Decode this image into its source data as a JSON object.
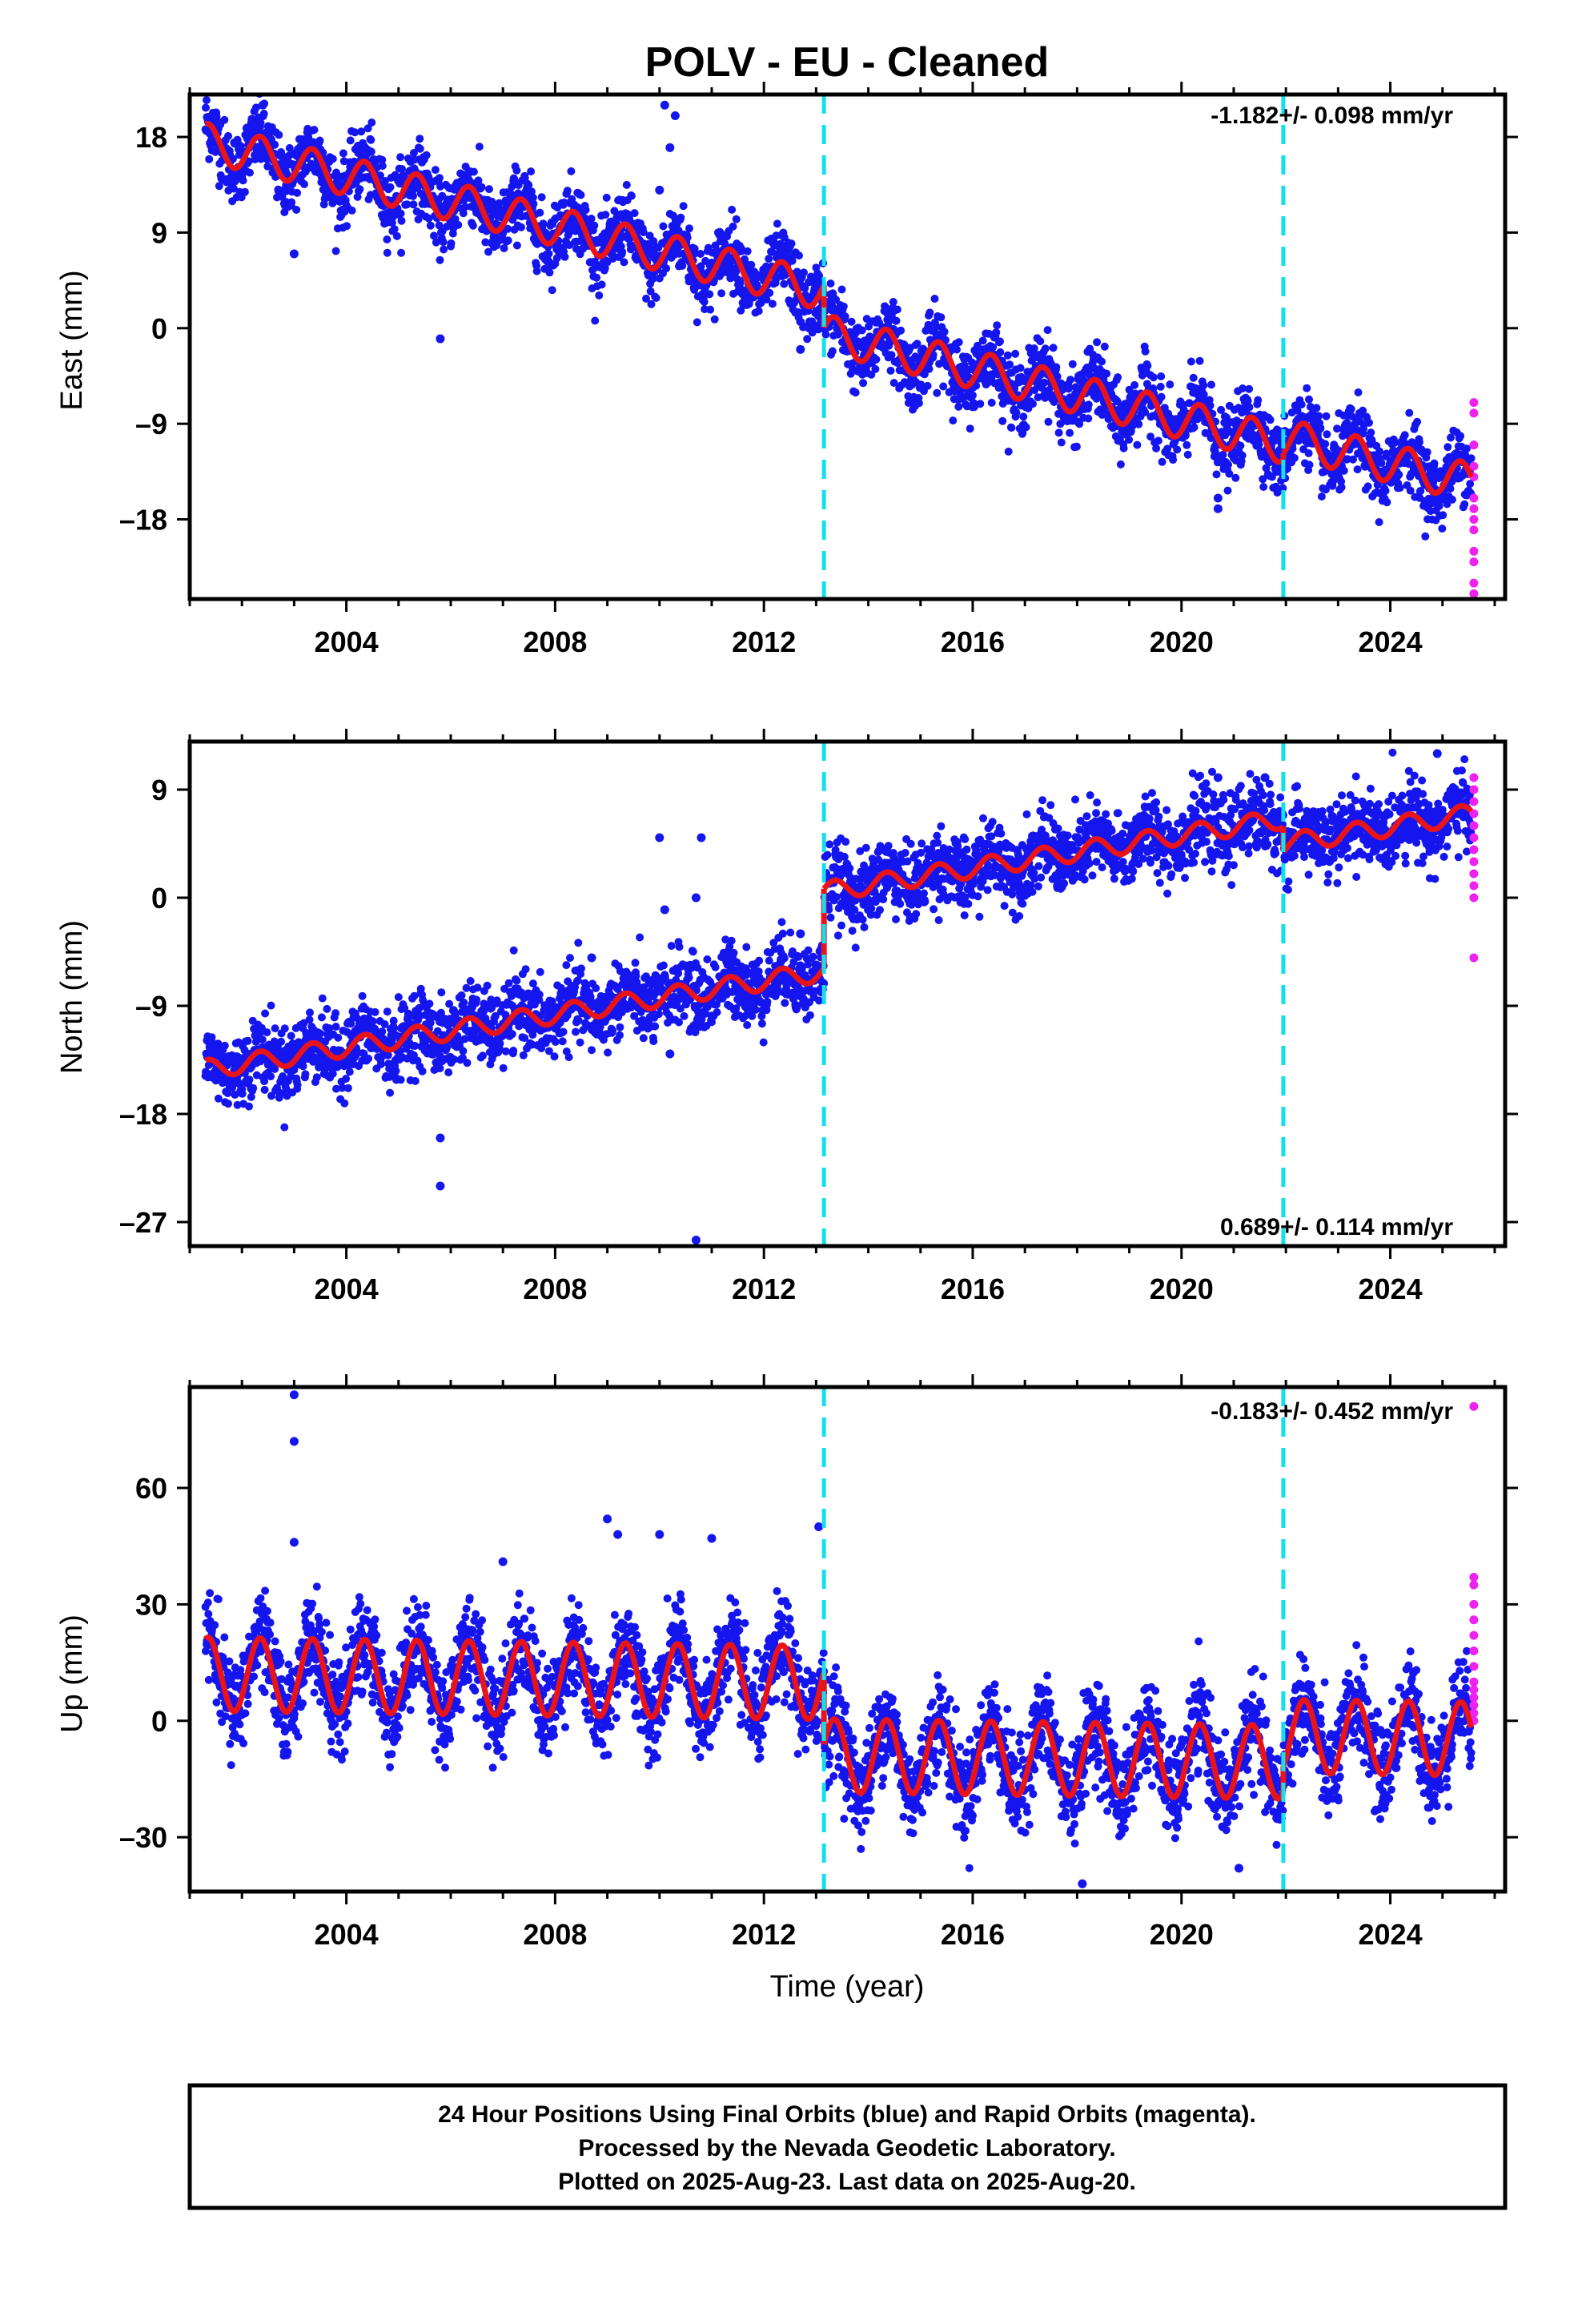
{
  "title": "POLV  - EU - Cleaned",
  "xlabel": "Time (year)",
  "colors": {
    "final": "#1515ee",
    "rapid": "#ee22ee",
    "model": "#e8141a",
    "breaks": "#11e0ee"
  },
  "footer": {
    "line1": "24 Hour Positions Using Final Orbits (blue) and Rapid Orbits (magenta).",
    "line2": "Processed by the Nevada Geodetic Laboratory.",
    "line3": "Plotted on 2025-Aug-23. Last data on 2025-Aug-20."
  },
  "chart_data": [
    {
      "type": "scatter",
      "component": "East",
      "ylabel": "East (mm)",
      "rate_label": "-1.182+/- 0.098 mm/yr",
      "rate_position": "top-right",
      "xlim": [
        2001.0,
        2026.2
      ],
      "ylim": [
        -25.5,
        22
      ],
      "xticks": [
        2004,
        2008,
        2012,
        2016,
        2020,
        2024
      ],
      "yticks": [
        18,
        9,
        0,
        -9,
        -18
      ],
      "ytick_labels": [
        "18",
        "9",
        "0",
        "–9",
        "–18"
      ],
      "breaks": [
        2013.15,
        2021.95
      ],
      "series": [
        {
          "role": "final",
          "x_range": [
            2001.3,
            2025.55
          ],
          "noise_mm": 1.6,
          "outliers": [
            [
              2002.4,
              21.0
            ],
            [
              2003.0,
              7.0
            ],
            [
              2005.8,
              -1.0
            ],
            [
              2010.0,
              13.0
            ],
            [
              2010.1,
              21.0
            ],
            [
              2010.3,
              20.0
            ],
            [
              2010.2,
              17.0
            ],
            [
              2012.7,
              -2.0
            ],
            [
              2020.7,
              -16.0
            ],
            [
              2020.7,
              -17.0
            ]
          ]
        },
        {
          "role": "rapid",
          "x": [
            2025.6,
            2025.6,
            2025.6,
            2025.6,
            2025.6,
            2025.6,
            2025.6,
            2025.6,
            2025.6,
            2025.6,
            2025.6,
            2025.6,
            2025.6
          ],
          "y": [
            -7,
            -8,
            -11,
            -13,
            -14,
            -16,
            -17,
            -18,
            -19,
            -21,
            -22,
            -24,
            -25
          ]
        },
        {
          "role": "model",
          "rate_mm_yr": -1.182,
          "amplitude_mm": 1.8,
          "segments": [
            {
              "x": [
                2001.3,
                2013.15
              ],
              "y0": 17.5,
              "x0": 2001.3
            },
            {
              "x": [
                2013.15,
                2021.95
              ],
              "y0": -0.5,
              "x0": 2013.15
            },
            {
              "x": [
                2021.95,
                2025.55
              ],
              "y0": -10.3,
              "x0": 2021.95
            }
          ]
        }
      ]
    },
    {
      "type": "scatter",
      "component": "North",
      "ylabel": "North (mm)",
      "rate_label": "0.689+/- 0.114 mm/yr",
      "rate_position": "bottom-right",
      "xlim": [
        2001.0,
        2026.2
      ],
      "ylim": [
        -29,
        13
      ],
      "xticks": [
        2004,
        2008,
        2012,
        2016,
        2020,
        2024
      ],
      "yticks": [
        9,
        0,
        -9,
        -18,
        -27
      ],
      "ytick_labels": [
        "9",
        "0",
        "–9",
        "–18",
        "–27"
      ],
      "breaks": [
        2013.15,
        2021.95
      ],
      "series": [
        {
          "role": "final",
          "x_range": [
            2001.3,
            2025.55
          ],
          "noise_mm": 1.5,
          "outliers": [
            [
              2005.8,
              -20.0
            ],
            [
              2005.8,
              -24.0
            ],
            [
              2007.0,
              -11.0
            ],
            [
              2008.7,
              -5.0
            ],
            [
              2010.0,
              5.0
            ],
            [
              2010.1,
              -1.0
            ],
            [
              2010.2,
              -13.0
            ],
            [
              2010.7,
              0.0
            ],
            [
              2010.8,
              5.0
            ],
            [
              2010.7,
              -28.5
            ],
            [
              2012.7,
              -3.0
            ],
            [
              2020.7,
              10.0
            ],
            [
              2021.6,
              10.0
            ],
            [
              2024.9,
              12.0
            ]
          ]
        },
        {
          "role": "rapid",
          "x": [
            2025.6,
            2025.6,
            2025.6,
            2025.6,
            2025.6,
            2025.6,
            2025.6,
            2025.6,
            2025.6,
            2025.6,
            2025.6,
            2025.6
          ],
          "y": [
            10,
            9,
            8,
            7,
            6,
            5,
            4,
            3,
            2,
            1,
            0,
            -5
          ]
        },
        {
          "role": "model",
          "rate_mm_yr": 0.689,
          "amplitude_mm": 0.8,
          "segments": [
            {
              "x": [
                2001.3,
                2013.15
              ],
              "y0": -14.3,
              "x0": 2001.3
            },
            {
              "x": [
                2013.15,
                2021.95
              ],
              "y0": 0.5,
              "x0": 2013.15
            },
            {
              "x": [
                2021.95,
                2025.55
              ],
              "y0": 4.5,
              "x0": 2021.95
            }
          ]
        }
      ]
    },
    {
      "type": "scatter",
      "component": "Up",
      "ylabel": "Up (mm)",
      "rate_label": "-0.183+/- 0.452 mm/yr",
      "rate_position": "top-right",
      "xlim": [
        2001.0,
        2026.2
      ],
      "ylim": [
        -44,
        86
      ],
      "xticks": [
        2004,
        2008,
        2012,
        2016,
        2020,
        2024
      ],
      "yticks": [
        60,
        30,
        0,
        -30
      ],
      "ytick_labels": [
        "60",
        "30",
        "0",
        "–30"
      ],
      "breaks": [
        2013.15,
        2021.95
      ],
      "series": [
        {
          "role": "final",
          "x_range": [
            2001.3,
            2025.55
          ],
          "noise_mm": 6.0,
          "outliers": [
            [
              2003.0,
              84.0
            ],
            [
              2003.0,
              72.0
            ],
            [
              2003.0,
              46.0
            ],
            [
              2007.0,
              41.0
            ],
            [
              2009.0,
              52.0
            ],
            [
              2009.2,
              48.0
            ],
            [
              2010.0,
              48.0
            ],
            [
              2011.0,
              47.0
            ],
            [
              2013.05,
              50.0
            ],
            [
              2018.1,
              -42.0
            ],
            [
              2021.1,
              -38.0
            ]
          ]
        },
        {
          "role": "rapid",
          "x": [
            2025.6,
            2025.6,
            2025.6,
            2025.6,
            2025.6,
            2025.6,
            2025.6,
            2025.6,
            2025.6,
            2025.6,
            2025.6,
            2025.6,
            2025.6,
            2025.6
          ],
          "y": [
            81,
            37,
            35,
            30,
            26,
            22,
            18,
            14,
            10,
            8,
            6,
            4,
            2,
            0
          ]
        },
        {
          "role": "model",
          "rate_mm_yr": -0.183,
          "amplitude_mm": 9.5,
          "segments": [
            {
              "x": [
                2001.3,
                2013.15
              ],
              "y0": 12.0,
              "x0": 2001.3
            },
            {
              "x": [
                2013.15,
                2021.95
              ],
              "y0": -9.0,
              "x0": 2013.15
            },
            {
              "x": [
                2021.95,
                2025.55
              ],
              "y0": -4.0,
              "x0": 2021.95
            }
          ]
        }
      ]
    }
  ]
}
